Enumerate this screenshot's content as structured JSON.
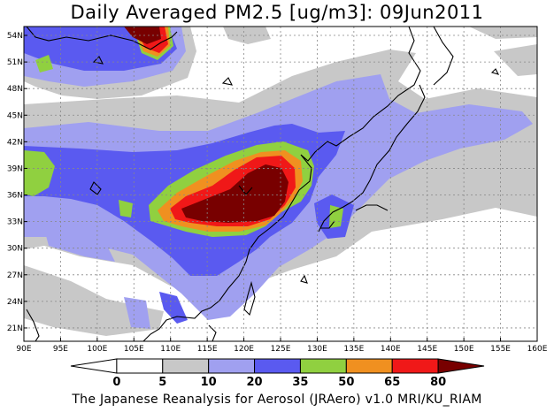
{
  "title": "Daily Averaged PM2.5 [ug/m3]: 09Jun2011",
  "footer": "The Japanese Reanalysis for Aerosol (JRAero) v1.0 MRI/KU_RIAM",
  "map": {
    "lon_range": [
      90,
      160
    ],
    "lat_range": [
      19.5,
      55
    ],
    "lon_ticks": [
      "90E",
      "95E",
      "100E",
      "105E",
      "110E",
      "115E",
      "120E",
      "125E",
      "130E",
      "135E",
      "140E",
      "145E",
      "150E",
      "155E",
      "160E"
    ],
    "lat_ticks": [
      "21N",
      "24N",
      "27N",
      "30N",
      "33N",
      "36N",
      "39N",
      "42N",
      "45N",
      "48N",
      "51N",
      "54N"
    ],
    "gridlines": true
  },
  "colorbar": {
    "levels": [
      "0",
      "5",
      "10",
      "20",
      "35",
      "50",
      "65",
      "80"
    ],
    "colors": [
      "#ffffff",
      "#c8c8c8",
      "#a0a0f0",
      "#5a5af0",
      "#90d040",
      "#f09020",
      "#f01818",
      "#780000"
    ],
    "under_color": "#ffffff",
    "over_color": "#780000"
  }
}
